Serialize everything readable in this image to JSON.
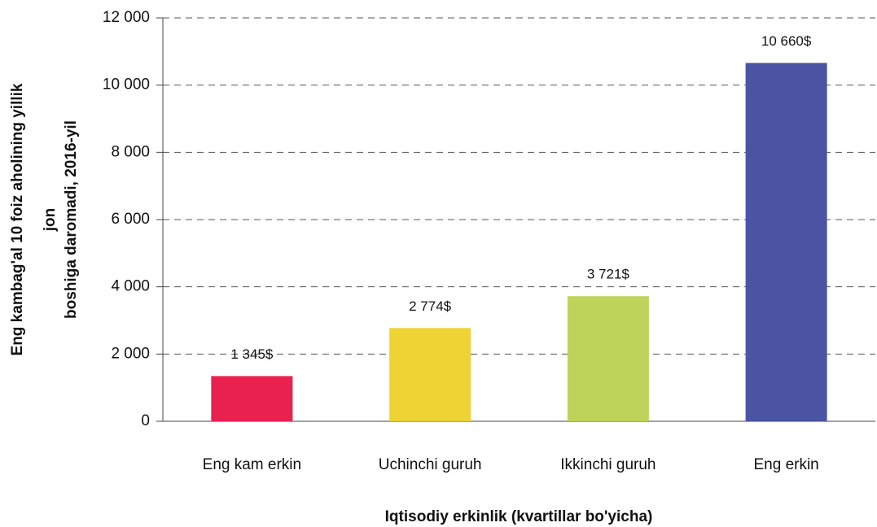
{
  "chart_data": {
    "type": "bar",
    "categories": [
      "Eng kam erkin",
      "Uchinchi guruh",
      "Ikkinchi guruh",
      "Eng erkin"
    ],
    "values": [
      1345,
      2774,
      3721,
      10660
    ],
    "value_labels": [
      "1 345$",
      "2 774$",
      "3 721$",
      "10 660$"
    ],
    "colors": [
      "#e8214f",
      "#efd234",
      "#bdd35a",
      "#4a54a3"
    ],
    "xlabel": "Iqtisodiy erkinlik (kvartillar bo'yicha)",
    "ylabel": [
      "Eng kambag'al 10 foiz aholining yillik",
      "jon",
      "boshiga daromadi, 2016-yil"
    ],
    "ylim": [
      0,
      12000
    ],
    "yticks": [
      0,
      {
        "value": 2000,
        "label": "2 000"
      },
      {
        "value": 4000,
        "label": "4 000"
      },
      {
        "value": 6000,
        "label": "6 000"
      },
      {
        "value": 8000,
        "label": "8 000"
      },
      {
        "value": 10000,
        "label": "10 000"
      },
      {
        "value": 12000,
        "label": "12 000"
      }
    ],
    "grid": true
  }
}
